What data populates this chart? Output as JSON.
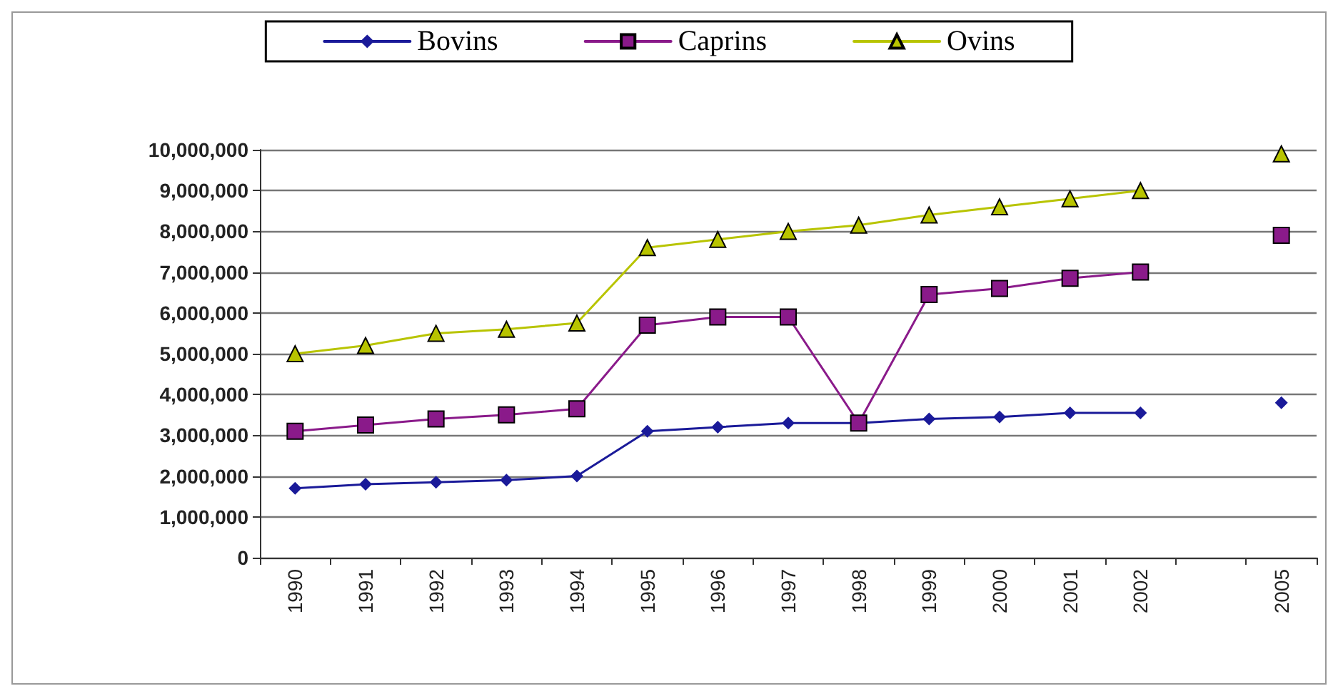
{
  "chart_data": {
    "type": "line",
    "categories": [
      "1990",
      "1991",
      "1992",
      "1993",
      "1994",
      "1995",
      "1996",
      "1997",
      "1998",
      "1999",
      "2000",
      "2001",
      "2002",
      null,
      "2005"
    ],
    "series": [
      {
        "name": "Bovins",
        "color": "#1a1a99",
        "marker": "diamond",
        "values": [
          1700000,
          1800000,
          1850000,
          1900000,
          2000000,
          3100000,
          3200000,
          3300000,
          3300000,
          3400000,
          3450000,
          3550000,
          3550000,
          null,
          3800000
        ]
      },
      {
        "name": "Caprins",
        "color": "#8a1a8a",
        "marker": "square",
        "values": [
          3100000,
          3250000,
          3400000,
          3500000,
          3650000,
          5700000,
          5900000,
          5900000,
          3300000,
          6450000,
          6600000,
          6850000,
          7000000,
          null,
          7900000
        ]
      },
      {
        "name": "Ovins",
        "color": "#b8c400",
        "marker": "triangle",
        "values": [
          5000000,
          5200000,
          5500000,
          5600000,
          5750000,
          7600000,
          7800000,
          8000000,
          8150000,
          8400000,
          8600000,
          8800000,
          9000000,
          null,
          9900000
        ]
      }
    ],
    "ylim": [
      0,
      10000000
    ],
    "yticks": [
      {
        "value": 0,
        "label": "0"
      },
      {
        "value": 1000000,
        "label": "1,000,000"
      },
      {
        "value": 2000000,
        "label": "2,000,000"
      },
      {
        "value": 3000000,
        "label": "3,000,000"
      },
      {
        "value": 4000000,
        "label": "4,000,000"
      },
      {
        "value": 5000000,
        "label": "5,000,000"
      },
      {
        "value": 6000000,
        "label": "6,000,000"
      },
      {
        "value": 7000000,
        "label": "7,000,000"
      },
      {
        "value": 8000000,
        "label": "8,000,000"
      },
      {
        "value": 9000000,
        "label": "9,000,000"
      },
      {
        "value": 10000000,
        "label": "10,000,000"
      }
    ],
    "grid": "y",
    "legend": "top"
  }
}
